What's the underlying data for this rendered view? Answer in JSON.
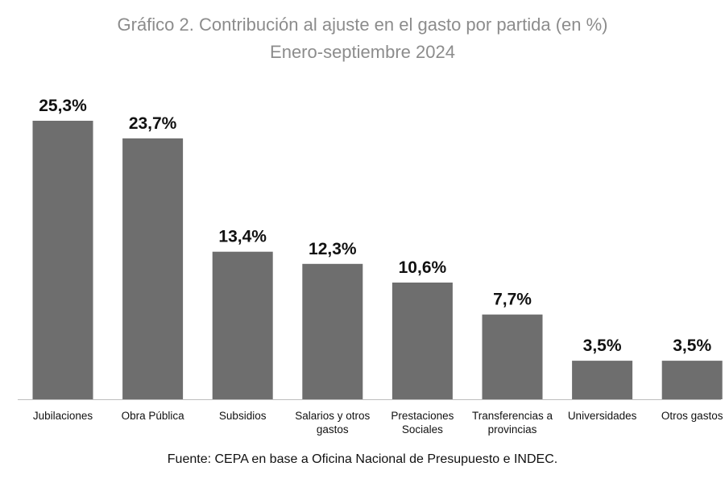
{
  "chart_data": {
    "type": "bar",
    "title": "Gráfico 2. Contribución al ajuste en el gasto por partida (en %)",
    "subtitle": "Enero-septiembre 2024",
    "categories": [
      [
        "Jubilaciones"
      ],
      [
        "Obra Pública"
      ],
      [
        "Subsidios"
      ],
      [
        "Salarios y otros",
        "gastos"
      ],
      [
        "Prestaciones",
        "Sociales"
      ],
      [
        "Transferencias a",
        "provincias"
      ],
      [
        "Universidades"
      ],
      [
        "Otros gastos"
      ]
    ],
    "values": [
      25.3,
      23.7,
      13.4,
      12.3,
      10.6,
      7.7,
      3.5,
      3.5
    ],
    "value_labels": [
      "25,3%",
      "23,7%",
      "13,4%",
      "12,3%",
      "10,6%",
      "7,7%",
      "3,5%",
      "3,5%"
    ],
    "ylim": [
      0,
      25.3
    ],
    "xlabel": "",
    "ylabel": "",
    "grid": false,
    "bar_color": "#6e6e6e",
    "axis_color": "#bdbdbd"
  },
  "source": "Fuente: CEPA en base a Oficina Nacional de Presupuesto e INDEC."
}
